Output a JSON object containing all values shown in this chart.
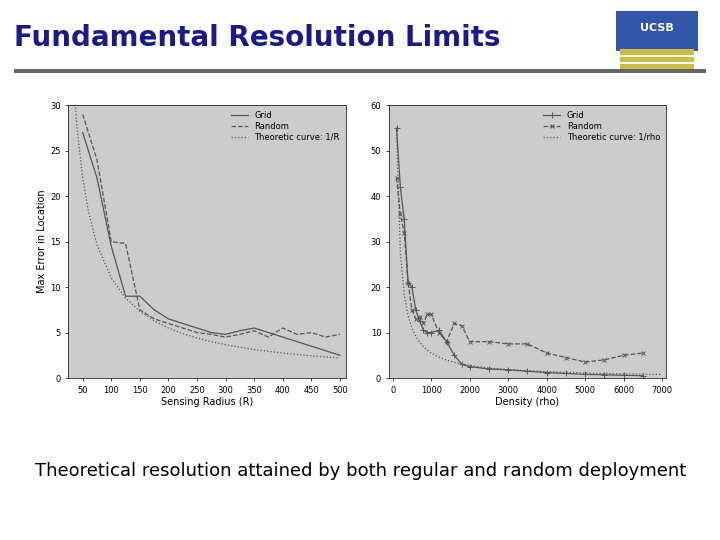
{
  "title": "Fundamental Resolution Limits",
  "subtitle": "Theoretical resolution attained by both regular and random deployment",
  "title_color": "#1a1a8c",
  "title_fontsize": 20,
  "subtitle_fontsize": 13,
  "bg_color": "#ffffff",
  "plot_bg": "#cccccc",
  "outer_box_color": "#bbbbbb",
  "separator_color": "#666666",
  "left_plot": {
    "xlabel": "Sensing Radius (R)",
    "ylabel": "Max Error in Location",
    "xlim": [
      25,
      510
    ],
    "ylim": [
      0,
      30
    ],
    "xticks": [
      50,
      100,
      150,
      200,
      250,
      300,
      350,
      400,
      450,
      500
    ],
    "yticks": [
      0,
      5,
      10,
      15,
      20,
      25,
      30
    ],
    "legend": [
      "Grid",
      "Random",
      "Theoretic curve: 1/R"
    ],
    "grid_x_vals": [
      50,
      75,
      100,
      125,
      150,
      175,
      200,
      225,
      250,
      275,
      300,
      325,
      350,
      375,
      400,
      425,
      450,
      475,
      500
    ],
    "random_x": [
      50,
      75,
      100,
      125,
      150,
      175,
      200,
      225,
      250,
      275,
      300,
      325,
      350,
      375,
      400,
      425,
      450,
      475,
      500
    ],
    "grid_y": [
      27.0,
      22.0,
      14.5,
      9.0,
      9.0,
      7.5,
      6.5,
      6.0,
      5.5,
      5.0,
      4.8,
      5.2,
      5.5,
      5.0,
      4.5,
      4.0,
      3.5,
      3.0,
      2.5
    ],
    "random_y": [
      29.0,
      24.0,
      15.0,
      14.8,
      7.5,
      6.5,
      6.0,
      5.5,
      5.0,
      4.8,
      4.5,
      4.8,
      5.2,
      4.5,
      5.5,
      4.8,
      5.0,
      4.5,
      4.8
    ],
    "theory_x": [
      30,
      40,
      50,
      60,
      75,
      100,
      125,
      150,
      175,
      200,
      225,
      250,
      275,
      300,
      325,
      350,
      375,
      400,
      425,
      450,
      475,
      500
    ],
    "theory_scale": 1100
  },
  "right_plot": {
    "xlabel": "Density (rho)",
    "ylabel": "",
    "xlim": [
      -100,
      7100
    ],
    "ylim": [
      0,
      60
    ],
    "xticks": [
      0,
      1000,
      2000,
      3000,
      4000,
      5000,
      6000,
      7000
    ],
    "yticks": [
      0,
      10,
      20,
      30,
      40,
      50,
      60
    ],
    "legend": [
      "Grid",
      "Random",
      "Theoretic curve: 1/rho"
    ],
    "grid_x": [
      100,
      200,
      300,
      400,
      500,
      600,
      700,
      800,
      900,
      1000,
      1200,
      1400,
      1600,
      1800,
      2000,
      2500,
      3000,
      3500,
      4000,
      4500,
      5000,
      5500,
      6000,
      6500
    ],
    "random_x": [
      100,
      200,
      300,
      400,
      500,
      600,
      700,
      800,
      900,
      1000,
      1200,
      1400,
      1600,
      1800,
      2000,
      2500,
      3000,
      3500,
      4000,
      4500,
      5000,
      5500,
      6000,
      6500
    ],
    "grid_y": [
      55.0,
      42.0,
      35.0,
      21.0,
      20.0,
      15.0,
      12.5,
      10.5,
      10.0,
      10.0,
      10.5,
      8.0,
      5.0,
      3.0,
      2.5,
      2.0,
      1.8,
      1.5,
      1.2,
      1.0,
      0.8,
      0.7,
      0.6,
      0.5
    ],
    "random_y": [
      44.0,
      36.0,
      32.0,
      21.0,
      15.0,
      13.0,
      13.5,
      12.0,
      14.0,
      14.0,
      10.0,
      8.0,
      12.0,
      11.5,
      8.0,
      8.0,
      7.5,
      7.5,
      5.5,
      4.5,
      3.5,
      4.0,
      5.0,
      5.5
    ],
    "theory_x": [
      100,
      200,
      300,
      400,
      500,
      600,
      700,
      800,
      900,
      1000,
      1200,
      1400,
      1600,
      1800,
      2000,
      2500,
      3000,
      4000,
      5000,
      6000,
      7000
    ],
    "theory_scale": 5500
  },
  "line_color": "#555555",
  "line_width": 0.9,
  "marker_size": 3,
  "tick_fontsize": 6,
  "axis_label_fontsize": 7,
  "legend_fontsize": 6
}
